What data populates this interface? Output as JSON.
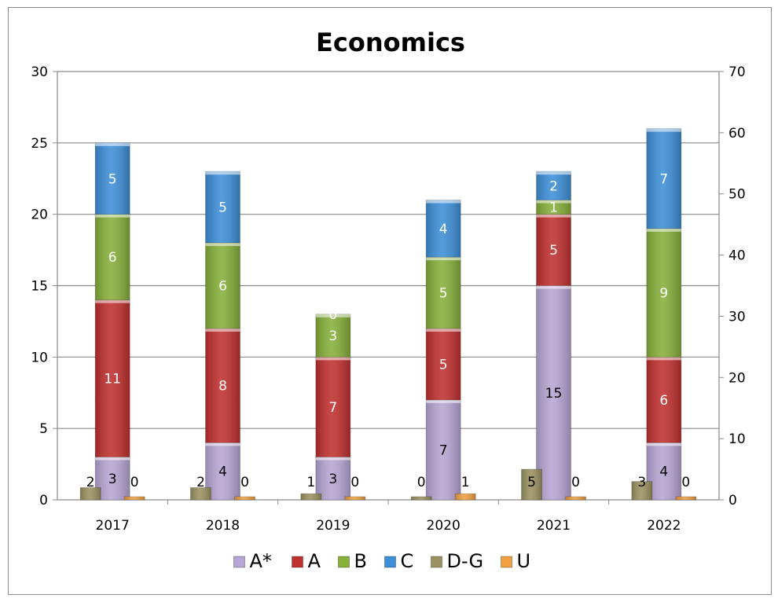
{
  "chart_data": {
    "type": "bar",
    "stacked": true,
    "title": "Economics",
    "categories": [
      "2017",
      "2018",
      "2019",
      "2020",
      "2021",
      "2022"
    ],
    "ylim": [
      0,
      30
    ],
    "yticks": [
      0,
      5,
      10,
      15,
      20,
      25,
      30
    ],
    "y2lim": [
      0,
      70
    ],
    "y2ticks": [
      0,
      10,
      20,
      30,
      40,
      50,
      60,
      70
    ],
    "grid": true,
    "legend": "bottom",
    "series": [
      {
        "name": "A*",
        "axis": "left",
        "stacked": true,
        "color": "#b7a6d4",
        "label_color": "#000000",
        "values": [
          3,
          4,
          3,
          7,
          15,
          4
        ]
      },
      {
        "name": "A",
        "axis": "left",
        "stacked": true,
        "color": "#c0302f",
        "label_color": "#ffffff",
        "values": [
          11,
          8,
          7,
          5,
          5,
          6
        ]
      },
      {
        "name": "B",
        "axis": "left",
        "stacked": true,
        "color": "#86b03a",
        "label_color": "#ffffff",
        "values": [
          6,
          6,
          3,
          5,
          1,
          9
        ]
      },
      {
        "name": "C",
        "axis": "left",
        "stacked": true,
        "color": "#3d8fd8",
        "label_color": "#ffffff",
        "values": [
          5,
          5,
          0,
          4,
          2,
          7
        ]
      },
      {
        "name": "D-G",
        "axis": "right",
        "stacked": false,
        "color": "#9b9160",
        "label_color": "#000000",
        "values": [
          2,
          2,
          1,
          0,
          5,
          3
        ]
      },
      {
        "name": "U",
        "axis": "right",
        "stacked": false,
        "color": "#f0a040",
        "label_color": "#000000",
        "values": [
          0,
          0,
          0,
          1,
          0,
          0
        ]
      }
    ]
  }
}
